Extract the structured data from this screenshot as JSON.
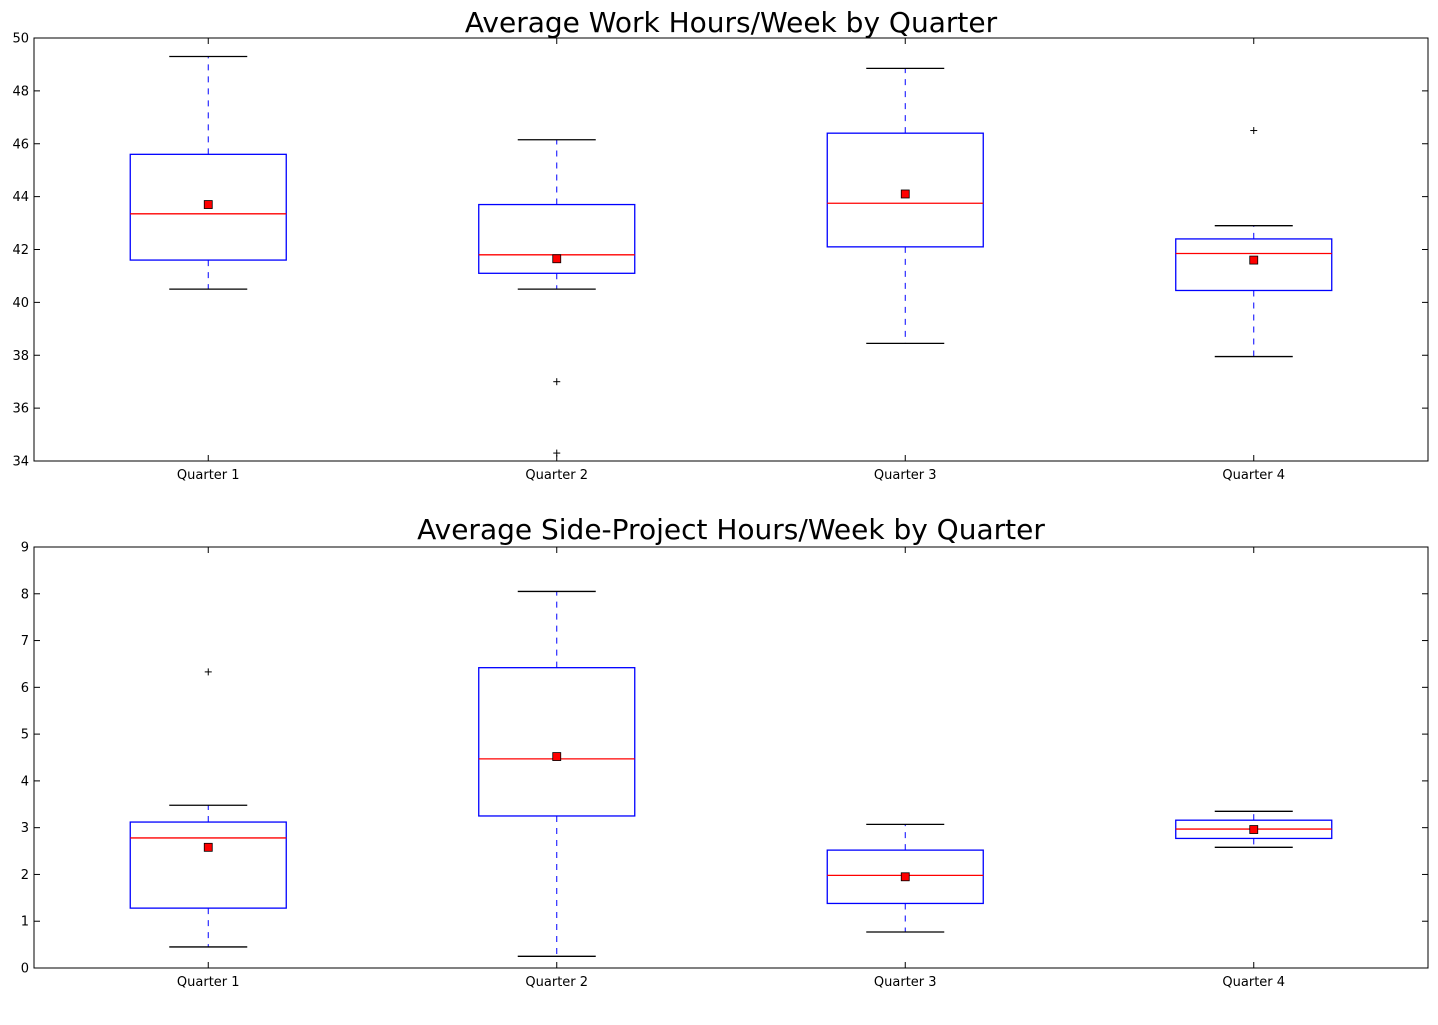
{
  "chart_data": [
    {
      "type": "boxplot",
      "title": "Average Work Hours/Week by Quarter",
      "xlabel": "",
      "ylabel": "",
      "ylim": [
        34,
        50
      ],
      "yticks": [
        34,
        36,
        38,
        40,
        42,
        44,
        46,
        48,
        50
      ],
      "categories": [
        "Quarter 1",
        "Quarter 2",
        "Quarter 3",
        "Quarter 4"
      ],
      "boxes": [
        {
          "category": "Quarter 1",
          "whisker_low": 40.5,
          "q1": 41.6,
          "median": 43.35,
          "q3": 45.6,
          "whisker_high": 49.3,
          "mean": 43.7,
          "outliers": []
        },
        {
          "category": "Quarter 2",
          "whisker_low": 40.5,
          "q1": 41.1,
          "median": 41.8,
          "q3": 43.7,
          "whisker_high": 46.15,
          "mean": 41.65,
          "outliers": [
            37.0,
            34.3
          ]
        },
        {
          "category": "Quarter 3",
          "whisker_low": 38.45,
          "q1": 42.1,
          "median": 43.75,
          "q3": 46.4,
          "whisker_high": 48.85,
          "mean": 44.1,
          "outliers": []
        },
        {
          "category": "Quarter 4",
          "whisker_low": 37.95,
          "q1": 40.45,
          "median": 41.85,
          "q3": 42.4,
          "whisker_high": 42.9,
          "mean": 41.6,
          "outliers": [
            46.5
          ]
        }
      ]
    },
    {
      "type": "boxplot",
      "title": "Average Side-Project Hours/Week by Quarter",
      "xlabel": "",
      "ylabel": "",
      "ylim": [
        0,
        9
      ],
      "yticks": [
        0,
        1,
        2,
        3,
        4,
        5,
        6,
        7,
        8,
        9
      ],
      "categories": [
        "Quarter 1",
        "Quarter 2",
        "Quarter 3",
        "Quarter 4"
      ],
      "boxes": [
        {
          "category": "Quarter 1",
          "whisker_low": 0.45,
          "q1": 1.28,
          "median": 2.78,
          "q3": 3.12,
          "whisker_high": 3.48,
          "mean": 2.58,
          "outliers": [
            6.33
          ]
        },
        {
          "category": "Quarter 2",
          "whisker_low": 0.25,
          "q1": 3.25,
          "median": 4.47,
          "q3": 6.42,
          "whisker_high": 8.05,
          "mean": 4.52,
          "outliers": []
        },
        {
          "category": "Quarter 3",
          "whisker_low": 0.77,
          "q1": 1.38,
          "median": 1.98,
          "q3": 2.52,
          "whisker_high": 3.07,
          "mean": 1.95,
          "outliers": []
        },
        {
          "category": "Quarter 4",
          "whisker_low": 2.58,
          "q1": 2.77,
          "median": 2.97,
          "q3": 3.16,
          "whisker_high": 3.35,
          "mean": 2.96,
          "outliers": []
        }
      ]
    }
  ],
  "colors": {
    "box": "#0000ff",
    "median": "#ff0000",
    "mean_marker": "#ff0000",
    "cap": "#000000",
    "axes": "#000000",
    "background": "#ffffff"
  }
}
